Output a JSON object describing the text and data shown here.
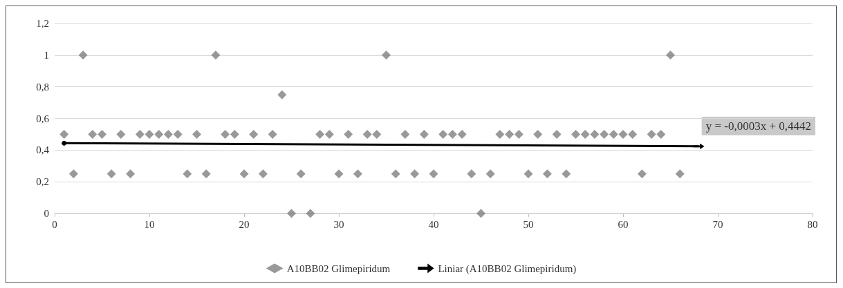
{
  "chart_data": {
    "type": "scatter",
    "marker": "diamond",
    "grid": "y",
    "legend": "bottom",
    "xlim": [
      0,
      80
    ],
    "xticks": [
      0,
      10,
      20,
      30,
      40,
      50,
      60,
      70,
      80
    ],
    "ylim": [
      0,
      1.2
    ],
    "yticks": [
      0,
      {
        "value": 0.2,
        "label": "0,2"
      },
      {
        "value": 0.4,
        "label": "0,4"
      },
      {
        "value": 0.6,
        "label": "0,6"
      },
      {
        "value": 0.8,
        "label": "0,8"
      },
      1,
      {
        "value": 1.2,
        "label": "1,2"
      }
    ],
    "annotations": [
      "y = -0,0003x + 0,4442"
    ],
    "series": [
      {
        "name": "A10BB02 Glimepiridum",
        "color": "#7f7f7f",
        "x": [
          1,
          2,
          3,
          4,
          5,
          6,
          7,
          8,
          9,
          10,
          11,
          12,
          13,
          14,
          15,
          16,
          17,
          18,
          19,
          20,
          21,
          22,
          23,
          24,
          25,
          26,
          27,
          28,
          29,
          30,
          31,
          32,
          33,
          34,
          35,
          36,
          37,
          38,
          39,
          40,
          41,
          42,
          43,
          44,
          45,
          46,
          47,
          48,
          49,
          50,
          51,
          52,
          53,
          54,
          55,
          56,
          57,
          58,
          59,
          60,
          61,
          62,
          63,
          64,
          65,
          66
        ],
        "values": [
          0.5,
          0.25,
          1,
          0.5,
          0.5,
          0.25,
          0.5,
          0.25,
          0.5,
          0.5,
          0.5,
          0.5,
          0.5,
          0.25,
          0.5,
          0.25,
          1,
          0.5,
          0.5,
          0.25,
          0.5,
          0.25,
          0.5,
          0.75,
          0,
          0.25,
          0,
          0.5,
          0.5,
          0.25,
          0.5,
          0.25,
          0.5,
          0.5,
          1,
          0.25,
          0.5,
          0.25,
          0.5,
          0.25,
          0.5,
          0.5,
          0.5,
          0.25,
          0,
          0.25,
          0.5,
          0.5,
          0.5,
          0.25,
          0.5,
          0.25,
          0.5,
          0.25,
          0.5,
          0.5,
          0.5,
          0.5,
          0.5,
          0.5,
          0.5,
          0.25,
          0.5,
          0.5,
          1,
          0.25
        ]
      },
      {
        "name": "Liniar (A10BB02 Glimepiridum)",
        "type": "line",
        "color": "#000000",
        "x": [
          1,
          68
        ],
        "values": [
          0.444,
          0.424
        ]
      }
    ]
  }
}
